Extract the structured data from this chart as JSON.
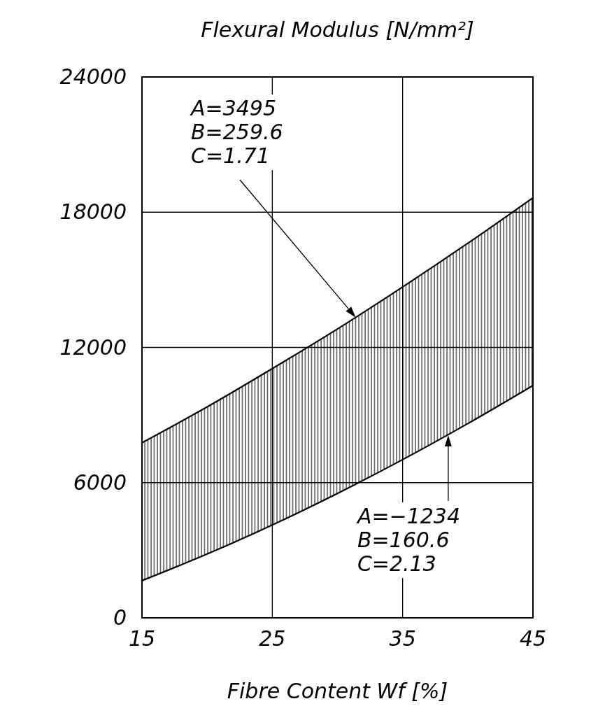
{
  "chart_data": {
    "type": "line",
    "xlabel": "Fibre Content Wf [%]",
    "ylabel": "Flexural Modulus [N/mm²]",
    "x": [
      15,
      20,
      25,
      30,
      35,
      40,
      45
    ],
    "series": [
      {
        "color": "#000000",
        "values": [
          7770,
          9360,
          11060,
          12820,
          14680,
          16620,
          18640
        ],
        "lower": [
          1650,
          2830,
          4120,
          5520,
          7020,
          8620,
          10310
        ],
        "upper": [
          7770,
          9360,
          11060,
          12820,
          14680,
          16620,
          18640
        ]
      },
      {
        "color": "#000000",
        "values": [
          1650,
          2830,
          4120,
          5520,
          7020,
          8620,
          10310
        ]
      }
    ],
    "xlim": [
      15,
      45
    ],
    "xticks": [
      15,
      25,
      35,
      45
    ],
    "ylim": [
      0,
      24000
    ],
    "yticks": [
      0,
      6000,
      12000,
      18000,
      24000
    ],
    "grid": true,
    "line_style": "solid",
    "annotations": [
      "A=3495\nB=259.6\nC=1.71",
      "A=−1234\nB=160.6\nC=2.13"
    ]
  }
}
